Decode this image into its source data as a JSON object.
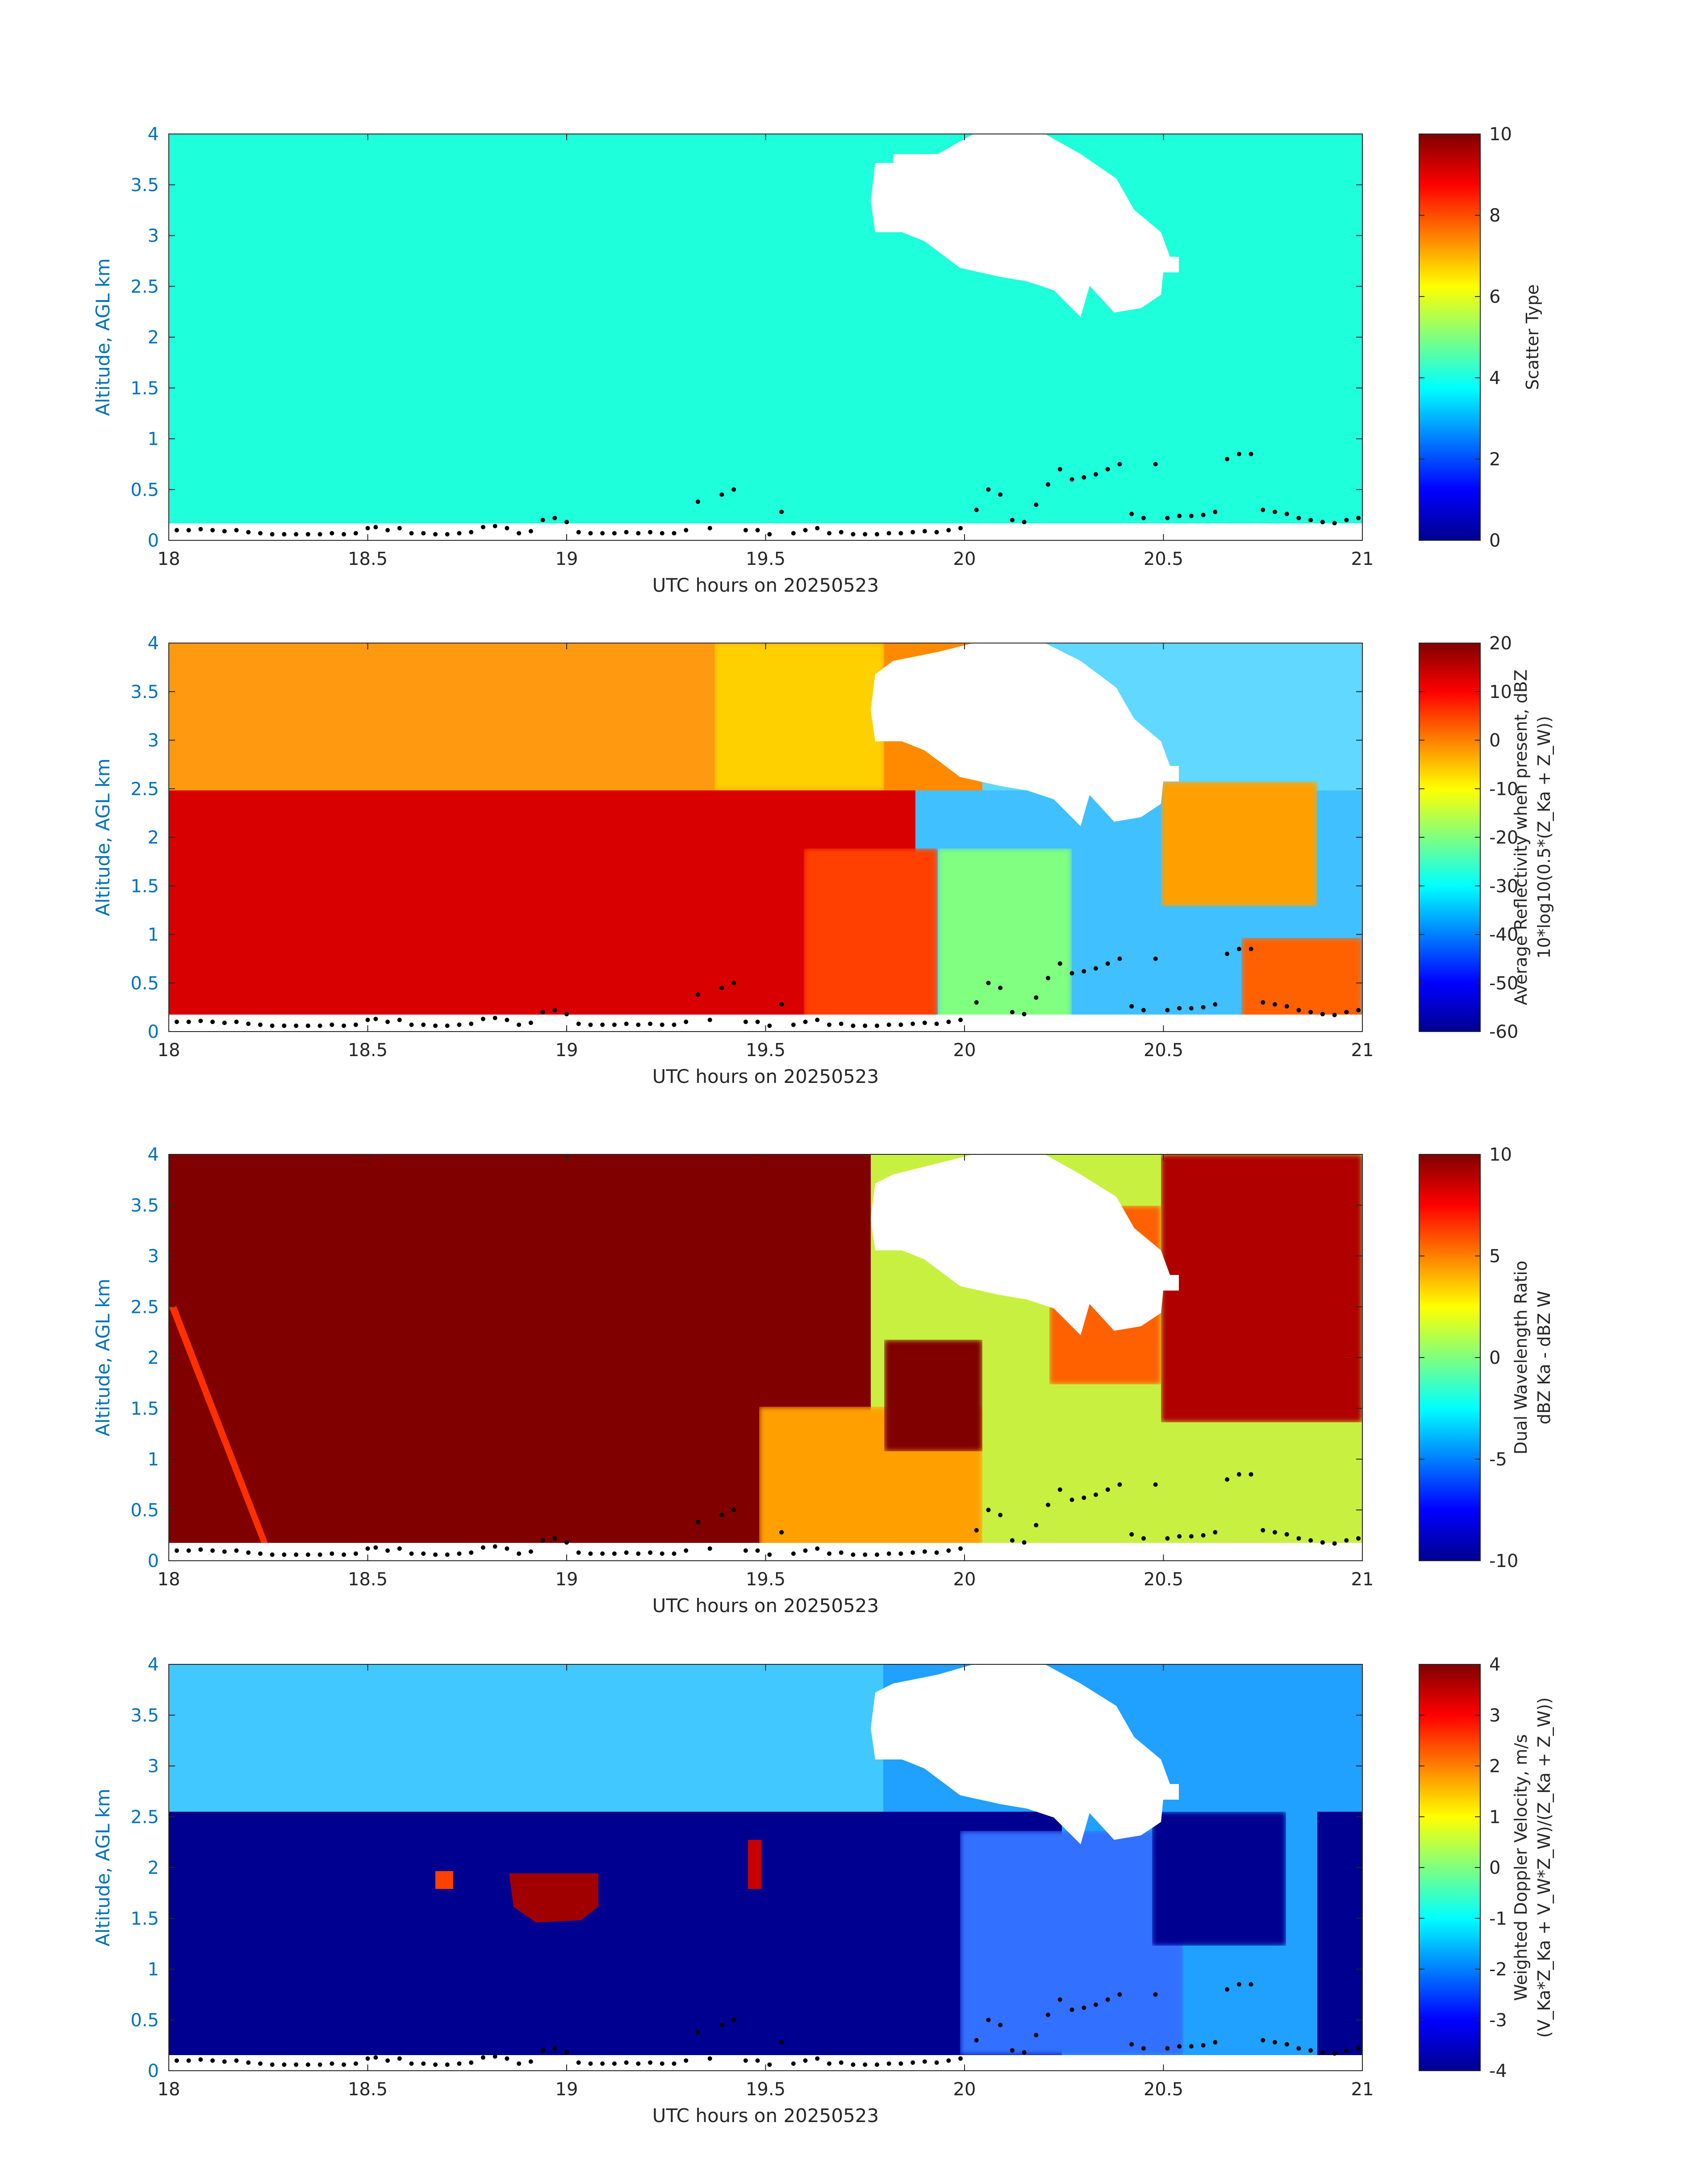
{
  "figure": {
    "xlabel": "UTC hours on 20250523",
    "ylabel": "Altitude, AGL km"
  },
  "chart_data": [
    {
      "type": "heatmap",
      "name": "scatter-type",
      "xlabel": "UTC hours on 20250523",
      "ylabel": "Altitude, AGL km",
      "xlim": [
        18,
        21
      ],
      "ylim": [
        0,
        4
      ],
      "xticks": [
        "18",
        "18.5",
        "19",
        "19.5",
        "20",
        "20.5",
        "21"
      ],
      "yticks": [
        "0",
        "0.5",
        "1",
        "1.5",
        "2",
        "2.5",
        "3",
        "3.5",
        "4"
      ],
      "colorbar_label": [
        "Scatter Type"
      ],
      "clim": [
        0,
        10
      ],
      "colorbar_ticks": [
        "0",
        "2",
        "4",
        "6",
        "8",
        "10"
      ],
      "colormap": "jet",
      "grid": false
    },
    {
      "type": "heatmap",
      "name": "reflectivity",
      "xlabel": "UTC hours on 20250523",
      "ylabel": "Altitude, AGL km",
      "xlim": [
        18,
        21
      ],
      "ylim": [
        0,
        4
      ],
      "xticks": [
        "18",
        "18.5",
        "19",
        "19.5",
        "20",
        "20.5",
        "21"
      ],
      "yticks": [
        "0",
        "0.5",
        "1",
        "1.5",
        "2",
        "2.5",
        "3",
        "3.5",
        "4"
      ],
      "colorbar_label": [
        "Average Reflectivity when present, dBZ",
        "10*log10(0.5*(Z_Ka + Z_W))"
      ],
      "clim": [
        -60,
        20
      ],
      "colorbar_ticks": [
        "-60",
        "-50",
        "-40",
        "-30",
        "-20",
        "-10",
        "0",
        "10",
        "20"
      ],
      "colormap": "jet",
      "grid": false
    },
    {
      "type": "heatmap",
      "name": "dual-wavelength-ratio",
      "xlabel": "UTC hours on 20250523",
      "ylabel": "Altitude, AGL km",
      "xlim": [
        18,
        21
      ],
      "ylim": [
        0,
        4
      ],
      "xticks": [
        "18",
        "18.5",
        "19",
        "19.5",
        "20",
        "20.5",
        "21"
      ],
      "yticks": [
        "0",
        "0.5",
        "1",
        "1.5",
        "2",
        "2.5",
        "3",
        "3.5",
        "4"
      ],
      "colorbar_label": [
        "Dual Wavelength Ratio",
        "dBZ Ka - dBZ W"
      ],
      "clim": [
        -10,
        10
      ],
      "colorbar_ticks": [
        "-10",
        "-5",
        "0",
        "5",
        "10"
      ],
      "colormap": "jet",
      "grid": false
    },
    {
      "type": "heatmap",
      "name": "doppler-velocity",
      "xlabel": "UTC hours on 20250523",
      "ylabel": "Altitude, AGL km",
      "xlim": [
        18,
        21
      ],
      "ylim": [
        0,
        4
      ],
      "xticks": [
        "18",
        "18.5",
        "19",
        "19.5",
        "20",
        "20.5",
        "21"
      ],
      "yticks": [
        "0",
        "0.5",
        "1",
        "1.5",
        "2",
        "2.5",
        "3",
        "3.5",
        "4"
      ],
      "colorbar_label": [
        "Weighted Doppler Velocity, m/s",
        "(V_Ka*Z_Ka + V_W*Z_W)/(Z_Ka + Z_W))"
      ],
      "clim": [
        -4,
        4
      ],
      "colorbar_ticks": [
        "-4",
        "-3",
        "-2",
        "-1",
        "0",
        "1",
        "2",
        "3",
        "4"
      ],
      "colormap": "jet",
      "grid": false
    }
  ],
  "cloud_base_points": {
    "x": [
      18.02,
      18.05,
      18.08,
      18.11,
      18.14,
      18.17,
      18.2,
      18.23,
      18.26,
      18.29,
      18.32,
      18.35,
      18.38,
      18.41,
      18.44,
      18.47,
      18.5,
      18.52,
      18.55,
      18.58,
      18.61,
      18.64,
      18.67,
      18.7,
      18.73,
      18.76,
      18.79,
      18.82,
      18.85,
      18.88,
      18.91,
      18.94,
      18.97,
      19.0,
      19.03,
      19.06,
      19.09,
      19.12,
      19.15,
      19.18,
      19.21,
      19.24,
      19.27,
      19.3,
      19.33,
      19.36,
      19.39,
      19.42,
      19.45,
      19.48,
      19.51,
      19.54,
      19.57,
      19.6,
      19.63,
      19.66,
      19.69,
      19.72,
      19.75,
      19.78,
      19.81,
      19.84,
      19.87,
      19.9,
      19.93,
      19.96,
      19.99,
      20.03,
      20.06,
      20.09,
      20.12,
      20.15,
      20.18,
      20.21,
      20.24,
      20.27,
      20.3,
      20.33,
      20.36,
      20.39,
      20.42,
      20.45,
      20.48,
      20.51,
      20.54,
      20.57,
      20.6,
      20.63,
      20.66,
      20.69,
      20.72,
      20.75,
      20.78,
      20.81,
      20.84,
      20.87,
      20.9,
      20.93,
      20.96,
      20.99
    ],
    "y": [
      0.1,
      0.1,
      0.11,
      0.1,
      0.09,
      0.1,
      0.08,
      0.07,
      0.06,
      0.06,
      0.06,
      0.06,
      0.06,
      0.07,
      0.06,
      0.07,
      0.12,
      0.13,
      0.1,
      0.12,
      0.07,
      0.07,
      0.06,
      0.06,
      0.07,
      0.08,
      0.13,
      0.14,
      0.12,
      0.07,
      0.09,
      0.2,
      0.22,
      0.18,
      0.08,
      0.07,
      0.07,
      0.07,
      0.08,
      0.07,
      0.08,
      0.07,
      0.07,
      0.1,
      0.38,
      0.12,
      0.45,
      0.5,
      0.1,
      0.1,
      0.06,
      0.28,
      0.07,
      0.1,
      0.12,
      0.07,
      0.08,
      0.06,
      0.06,
      0.06,
      0.07,
      0.07,
      0.08,
      0.09,
      0.08,
      0.1,
      0.12,
      0.3,
      0.5,
      0.45,
      0.2,
      0.18,
      0.35,
      0.55,
      0.7,
      0.6,
      0.62,
      0.65,
      0.7,
      0.75,
      0.26,
      0.22,
      0.75,
      0.22,
      0.24,
      0.24,
      0.25,
      0.28,
      0.8,
      0.85,
      0.85,
      0.3,
      0.28,
      0.26,
      0.22,
      0.2,
      0.18,
      0.17,
      0.2,
      0.22
    ]
  }
}
